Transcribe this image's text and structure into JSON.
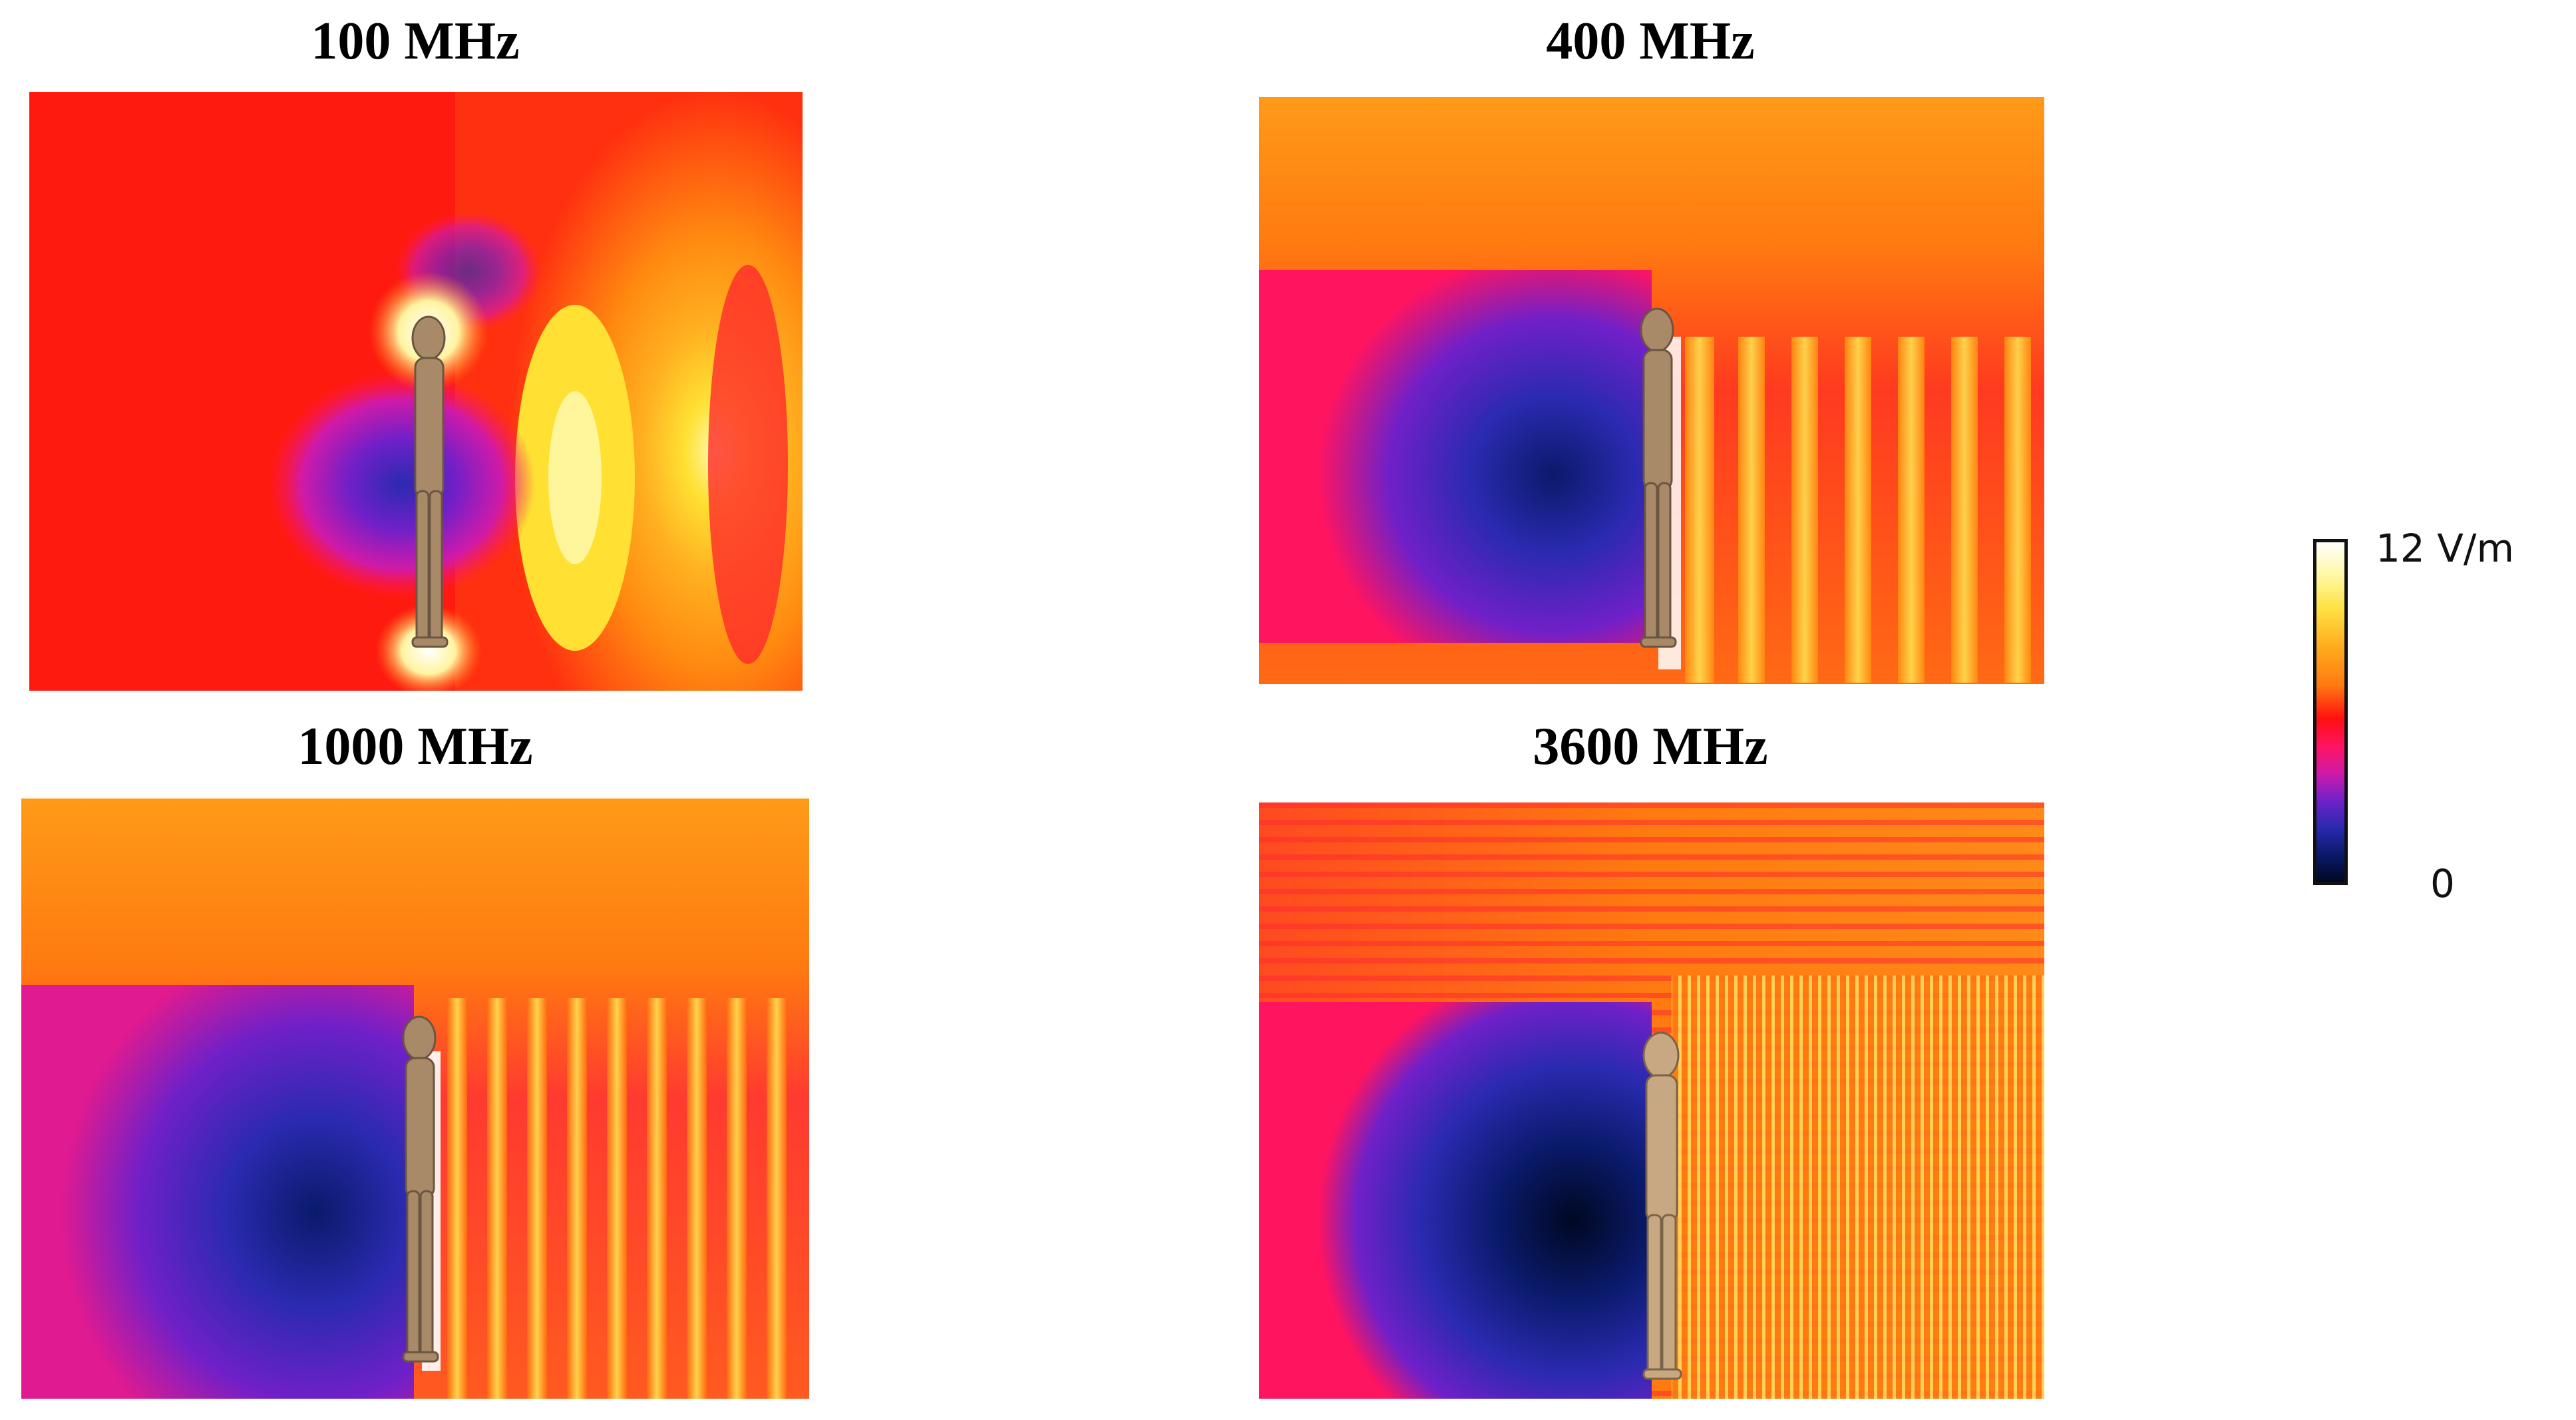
{
  "panels": [
    {
      "label": "100 MHz"
    },
    {
      "label": "400 MHz"
    },
    {
      "label": "1000 MHz"
    },
    {
      "label": "3600 MHz"
    }
  ],
  "colorbar": {
    "max_label": "12 V/m",
    "min_label": "0",
    "colors": [
      "#ffffff",
      "#ffe040",
      "#ff7a10",
      "#ff1010",
      "#d01aa8",
      "#2a2ab0",
      "#000822"
    ]
  }
}
